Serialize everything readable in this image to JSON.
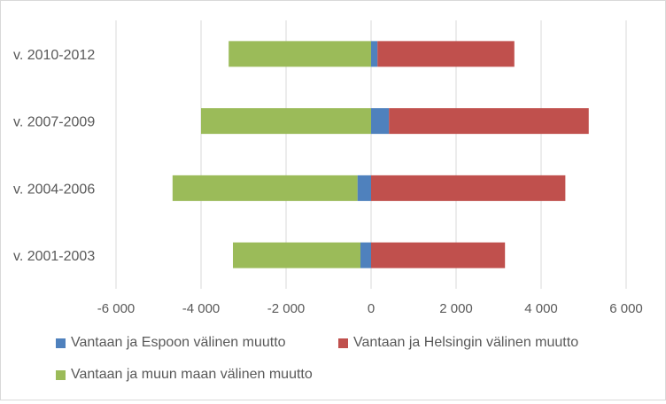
{
  "chart_data": {
    "type": "bar",
    "orientation": "horizontal",
    "stacked": true,
    "title": "",
    "xlabel": "",
    "ylabel": "",
    "categories": [
      "v. 2001-2003",
      "v. 2004-2006",
      "v. 2007-2009",
      "v. 2010-2012"
    ],
    "series": [
      {
        "name": "Vantaan ja Espoon välinen muutto",
        "color": "#4f81bd",
        "values": [
          -250,
          -320,
          420,
          150
        ]
      },
      {
        "name": "Vantaan ja Helsingin välinen muutto",
        "color": "#c0504d",
        "values": [
          3150,
          4570,
          4700,
          3220
        ]
      },
      {
        "name": "Vantaan ja muun maan välinen muutto",
        "color": "#9bbb59",
        "values": [
          -3000,
          -4350,
          -4000,
          -3350
        ]
      }
    ],
    "xlim": [
      -6000,
      6000
    ],
    "xticks": [
      -6000,
      -4000,
      -2000,
      0,
      2000,
      4000,
      6000
    ],
    "xtick_labels": [
      "-6 000",
      "-4 000",
      "-2 000",
      "0",
      "2 000",
      "4 000",
      "6 000"
    ],
    "grid": "vertical",
    "legend_position": "bottom"
  }
}
